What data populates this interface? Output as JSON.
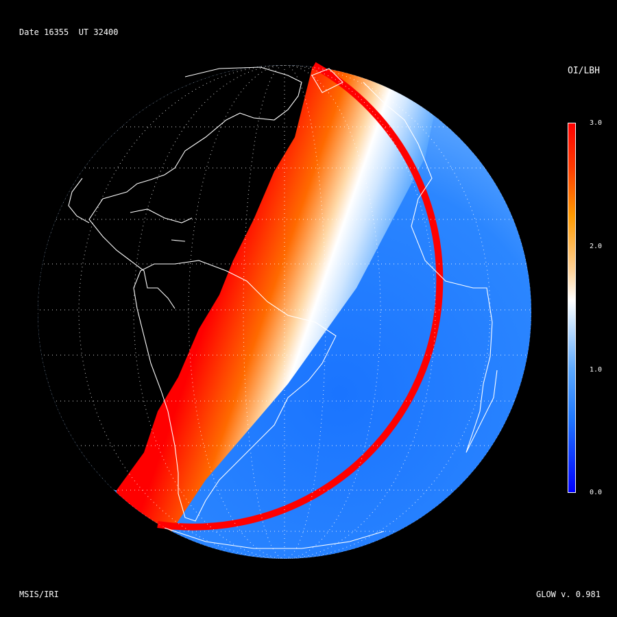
{
  "header": {
    "date_text": "Date 16355  UT 32400"
  },
  "footer": {
    "model_text": "MSIS/IRI",
    "version_text": "GLOW v. 0.981"
  },
  "colorbar": {
    "title": "OI/LBH",
    "min": 0.0,
    "max": 3.0,
    "ticks": [
      {
        "value": 3.0,
        "label": "3.0"
      },
      {
        "value": 2.0,
        "label": "2.0"
      },
      {
        "value": 1.0,
        "label": "1.0"
      },
      {
        "value": 0.0,
        "label": "0.0"
      }
    ]
  },
  "colors": {
    "background": "#000000",
    "night": "#000000",
    "terminator_high": "#ff0000",
    "terminator_mid": "#ff9a00",
    "neutral": "#ffffff",
    "day_low": "#1f78ff",
    "coastline": "#ffffff"
  },
  "chart_data": {
    "type": "heatmap",
    "title": "",
    "variable": "OI/LBH",
    "projection": "orthographic",
    "value_range": [
      0.0,
      3.0
    ],
    "regions": [
      {
        "name": "night side",
        "value": null
      },
      {
        "name": "terminator band",
        "value": 3.0
      },
      {
        "name": "transition",
        "value": 1.5
      },
      {
        "name": "dayside disk",
        "value": 0.8
      },
      {
        "name": "limb",
        "value": 3.0
      }
    ]
  }
}
